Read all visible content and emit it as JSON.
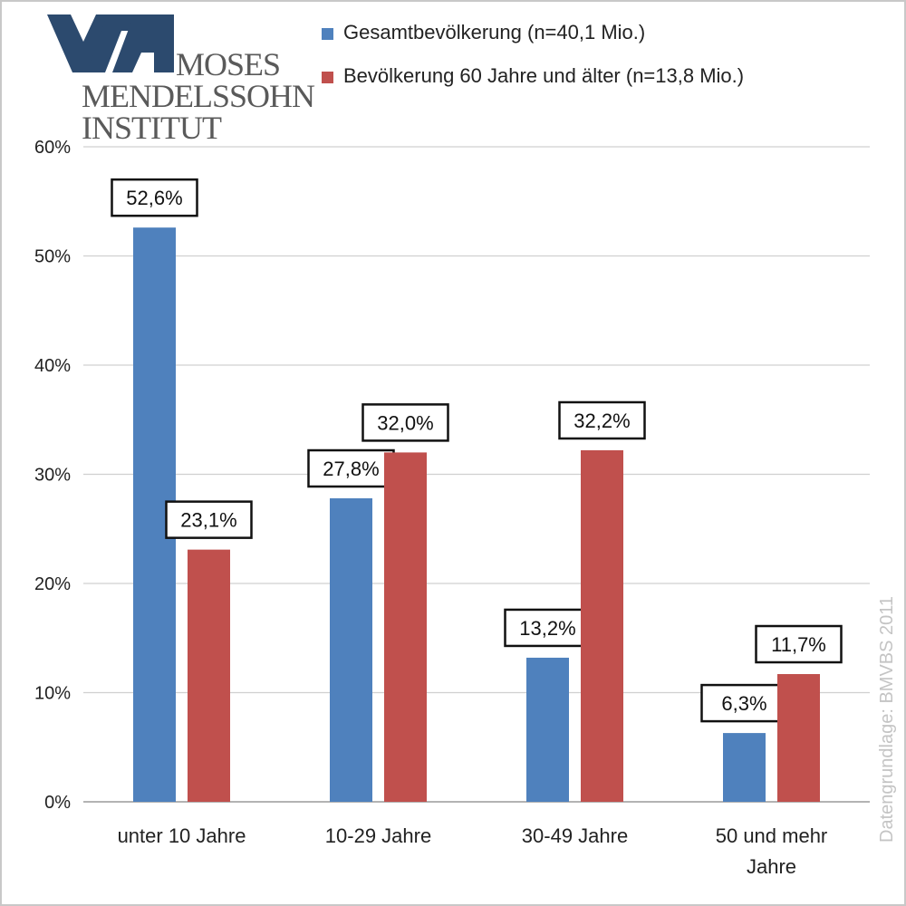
{
  "logo": {
    "line1": "MOSES",
    "line2": "MENDELSSOHN",
    "line3": "INSTITUT",
    "color": "#2c4a6e"
  },
  "source": "Datengrundlage: BMVBS 2011",
  "chart_data": {
    "type": "bar",
    "title": "",
    "xlabel": "",
    "ylabel": "",
    "categories": [
      "unter 10 Jahre",
      "10-29 Jahre",
      "30-49 Jahre",
      "50 und mehr Jahre"
    ],
    "series": [
      {
        "name": "Gesamtbevölkerung (n=40,1 Mio.)",
        "color": "#4f81bd",
        "values": [
          52.6,
          27.8,
          13.2,
          6.3
        ],
        "labels": [
          "52,6%",
          "27,8%",
          "13,2%",
          "6,3%"
        ]
      },
      {
        "name": "Bevölkerung 60 Jahre und älter (n=13,8 Mio.)",
        "color": "#c0504d",
        "values": [
          23.1,
          32.0,
          32.2,
          11.7
        ],
        "labels": [
          "23,1%",
          "32,0%",
          "32,2%",
          "11,7%"
        ]
      }
    ],
    "ylim": [
      0,
      60
    ],
    "yticks": [
      0,
      10,
      20,
      30,
      40,
      50,
      60
    ],
    "ytick_labels": [
      "0%",
      "10%",
      "20%",
      "30%",
      "40%",
      "50%",
      "60%"
    ],
    "grid": true,
    "legend_position": "top"
  }
}
